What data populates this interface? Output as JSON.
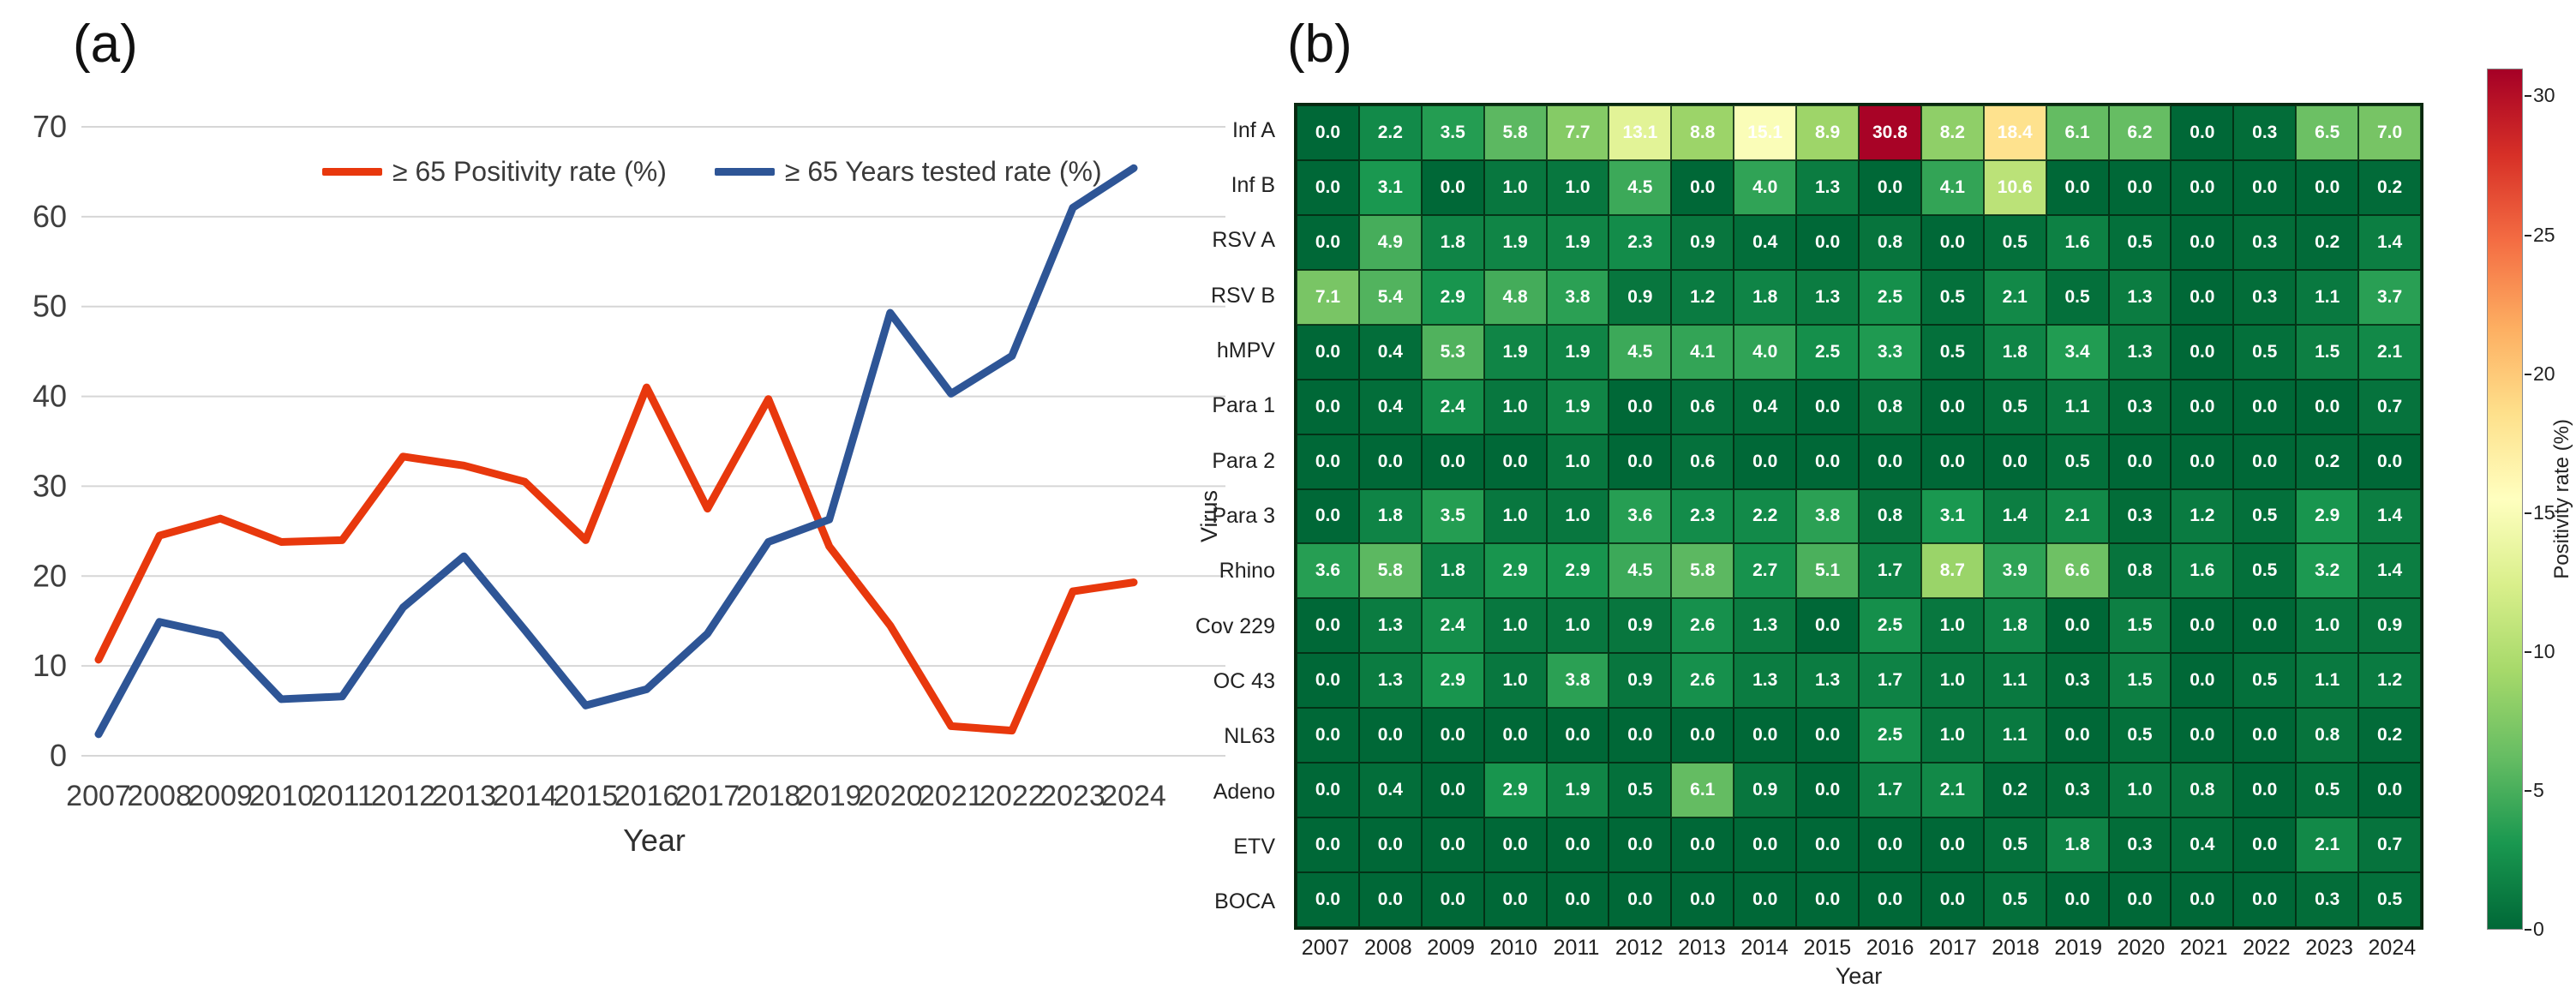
{
  "figure": {
    "background": "#ffffff"
  },
  "colors": {
    "grid": "#d6d6d6",
    "axis_text": "#3f3f3f",
    "cell_text": "#ffffff",
    "cell_border": "#07280f",
    "colormap_stops": [
      "#006837",
      "#1a9850",
      "#66bd63",
      "#a6d96a",
      "#d9ef8b",
      "#ffffbf",
      "#fee08b",
      "#fdae61",
      "#f46d43",
      "#d73027",
      "#a50026"
    ]
  },
  "chart_data": [
    {
      "type": "line",
      "panel_label": "(a)",
      "xlabel": "Year",
      "x": [
        2007,
        2008,
        2009,
        2010,
        2011,
        2012,
        2013,
        2014,
        2015,
        2016,
        2017,
        2018,
        2019,
        2020,
        2021,
        2022,
        2023,
        2024
      ],
      "ylim": [
        0,
        70
      ],
      "yticks": [
        0,
        10,
        20,
        30,
        40,
        50,
        60,
        70
      ],
      "grid": "horizontal",
      "legend_position": "top-center-inside",
      "series": [
        {
          "name": "≥ 65 Positivity rate (%)",
          "color": "#e8380d",
          "values": [
            10.7,
            24.5,
            26.4,
            23.8,
            24.0,
            33.3,
            32.3,
            30.5,
            24.0,
            41.0,
            27.5,
            39.7,
            23.3,
            14.5,
            3.3,
            2.8,
            18.3,
            19.3
          ]
        },
        {
          "name": "≥ 65 Years tested rate (%)",
          "color": "#2e5596",
          "values": [
            2.4,
            14.9,
            13.4,
            6.3,
            6.6,
            16.5,
            22.2,
            14.0,
            5.6,
            7.4,
            13.6,
            23.8,
            26.3,
            49.3,
            40.3,
            44.5,
            61.0,
            65.4
          ]
        }
      ]
    },
    {
      "type": "heatmap",
      "panel_label": "(b)",
      "xlabel": "Year",
      "ylabel": "Virus",
      "colormap": "green-yellow-red",
      "vmin": 0,
      "vmax": 31,
      "colorbar": {
        "title": "Positivity rate (%)",
        "ticks": [
          0,
          5,
          10,
          15,
          20,
          25,
          30
        ]
      },
      "columns": [
        "2007",
        "2008",
        "2009",
        "2010",
        "2011",
        "2012",
        "2013",
        "2014",
        "2015",
        "2016",
        "2017",
        "2018",
        "2019",
        "2020",
        "2021",
        "2022",
        "2023",
        "2024"
      ],
      "rows": [
        "Inf A",
        "Inf B",
        "RSV A",
        "RSV B",
        "hMPV",
        "Para 1",
        "Para 2",
        "Para 3",
        "Rhino",
        "Cov 229",
        "OC 43",
        "NL63",
        "Adeno",
        "ETV",
        "BOCA"
      ],
      "values": [
        [
          "0.0",
          "2.2",
          "3.5",
          "5.8",
          "7.7",
          "13.1",
          "8.8",
          "15.1",
          "8.9",
          "30.8",
          "8.2",
          "18.4",
          "6.1",
          "6.2",
          "0.0",
          "0.3",
          "6.5",
          "7.0"
        ],
        [
          "0.0",
          "3.1",
          "0.0",
          "1.0",
          "1.0",
          "4.5",
          "0.0",
          "4.0",
          "1.3",
          "0.0",
          "4.1",
          "10.6",
          "0.0",
          "0.0",
          "0.0",
          "0.0",
          "0.0",
          "0.2"
        ],
        [
          "0.0",
          "4.9",
          "1.8",
          "1.9",
          "1.9",
          "2.3",
          "0.9",
          "0.4",
          "0.0",
          "0.8",
          "0.0",
          "0.5",
          "1.6",
          "0.5",
          "0.0",
          "0.3",
          "0.2",
          "1.4"
        ],
        [
          "7.1",
          "5.4",
          "2.9",
          "4.8",
          "3.8",
          "0.9",
          "1.2",
          "1.8",
          "1.3",
          "2.5",
          "0.5",
          "2.1",
          "0.5",
          "1.3",
          "0.0",
          "0.3",
          "1.1",
          "3.7"
        ],
        [
          "0.0",
          "0.4",
          "5.3",
          "1.9",
          "1.9",
          "4.5",
          "4.1",
          "4.0",
          "2.5",
          "3.3",
          "0.5",
          "1.8",
          "3.4",
          "1.3",
          "0.0",
          "0.5",
          "1.5",
          "2.1"
        ],
        [
          "0.0",
          "0.4",
          "2.4",
          "1.0",
          "1.9",
          "0.0",
          "0.6",
          "0.4",
          "0.0",
          "0.8",
          "0.0",
          "0.5",
          "1.1",
          "0.3",
          "0.0",
          "0.0",
          "0.0",
          "0.7"
        ],
        [
          "0.0",
          "0.0",
          "0.0",
          "0.0",
          "1.0",
          "0.0",
          "0.6",
          "0.0",
          "0.0",
          "0.0",
          "0.0",
          "0.0",
          "0.5",
          "0.0",
          "0.0",
          "0.0",
          "0.2",
          "0.0"
        ],
        [
          "0.0",
          "1.8",
          "3.5",
          "1.0",
          "1.0",
          "3.6",
          "2.3",
          "2.2",
          "3.8",
          "0.8",
          "3.1",
          "1.4",
          "2.1",
          "0.3",
          "1.2",
          "0.5",
          "2.9",
          "1.4"
        ],
        [
          "3.6",
          "5.8",
          "1.8",
          "2.9",
          "2.9",
          "4.5",
          "5.8",
          "2.7",
          "5.1",
          "1.7",
          "8.7",
          "3.9",
          "6.6",
          "0.8",
          "1.6",
          "0.5",
          "3.2",
          "1.4"
        ],
        [
          "0.0",
          "1.3",
          "2.4",
          "1.0",
          "1.0",
          "0.9",
          "2.6",
          "1.3",
          "0.0",
          "2.5",
          "1.0",
          "1.8",
          "0.0",
          "1.5",
          "0.0",
          "0.0",
          "1.0",
          "0.9"
        ],
        [
          "0.0",
          "1.3",
          "2.9",
          "1.0",
          "3.8",
          "0.9",
          "2.6",
          "1.3",
          "1.3",
          "1.7",
          "1.0",
          "1.1",
          "0.3",
          "1.5",
          "0.0",
          "0.5",
          "1.1",
          "1.2"
        ],
        [
          "0.0",
          "0.0",
          "0.0",
          "0.0",
          "0.0",
          "0.0",
          "0.0",
          "0.0",
          "0.0",
          "2.5",
          "1.0",
          "1.1",
          "0.0",
          "0.5",
          "0.0",
          "0.0",
          "0.8",
          "0.2"
        ],
        [
          "0.0",
          "0.4",
          "0.0",
          "2.9",
          "1.9",
          "0.5",
          "6.1",
          "0.9",
          "0.0",
          "1.7",
          "2.1",
          "0.2",
          "0.3",
          "1.0",
          "0.8",
          "0.0",
          "0.5",
          "0.0"
        ],
        [
          "0.0",
          "0.0",
          "0.0",
          "0.0",
          "0.0",
          "0.0",
          "0.0",
          "0.0",
          "0.0",
          "0.0",
          "0.0",
          "0.5",
          "1.8",
          "0.3",
          "0.4",
          "0.0",
          "2.1",
          "0.7"
        ],
        [
          "0.0",
          "0.0",
          "0.0",
          "0.0",
          "0.0",
          "0.0",
          "0.0",
          "0.0",
          "0.0",
          "0.0",
          "0.0",
          "0.5",
          "0.0",
          "0.0",
          "0.0",
          "0.0",
          "0.3",
          "0.5"
        ]
      ]
    }
  ]
}
